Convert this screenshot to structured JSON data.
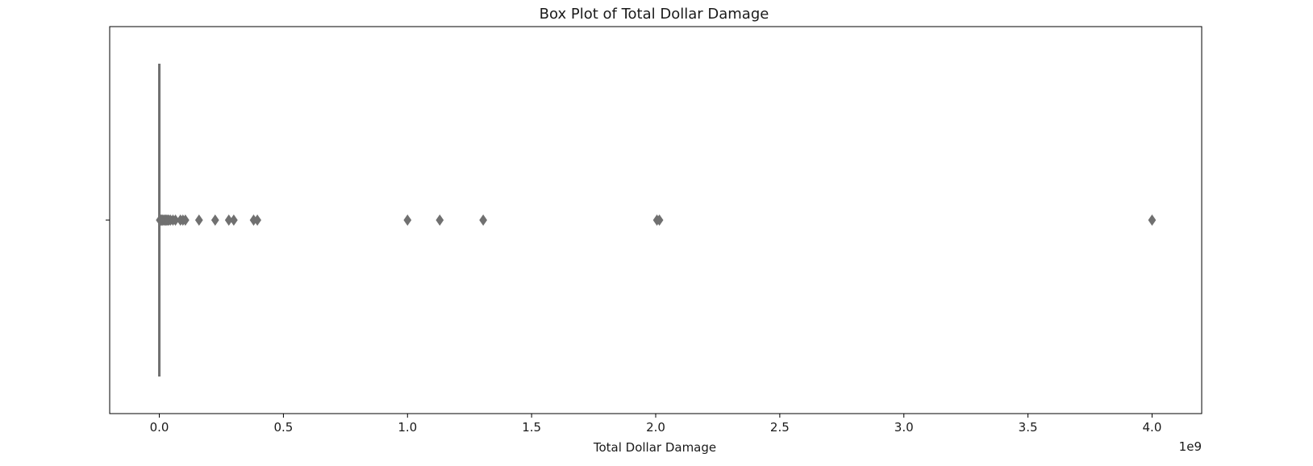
{
  "chart_data": {
    "type": "box",
    "title": "Box Plot of Total Dollar Damage",
    "xlabel": "Total Dollar Damage",
    "ylabel": "",
    "offset_label": "1e9",
    "xlim": [
      -0.2,
      4.2
    ],
    "scale_multiplier": 1000000000,
    "xticks": [
      0.0,
      0.5,
      1.0,
      1.5,
      2.0,
      2.5,
      3.0,
      3.5,
      4.0
    ],
    "xtick_labels": [
      "0.0",
      "0.5",
      "1.0",
      "1.5",
      "2.0",
      "2.5",
      "3.0",
      "3.5",
      "4.0"
    ],
    "box": {
      "q1": 0.0,
      "median": 0.0,
      "q3": 0.0,
      "whisker_low": 0.0,
      "whisker_high": 0.0
    },
    "outliers": [
      0.002,
      0.005,
      0.008,
      0.011,
      0.014,
      0.018,
      0.022,
      0.026,
      0.03,
      0.034,
      0.038,
      0.045,
      0.055,
      0.065,
      0.085,
      0.095,
      0.105,
      0.16,
      0.225,
      0.28,
      0.3,
      0.38,
      0.395,
      1.0,
      1.13,
      1.305,
      2.005,
      2.015,
      4.0
    ],
    "colors": {
      "box_line": "#707070",
      "outlier": "#707070",
      "axis": "#000000"
    },
    "grid": false
  }
}
